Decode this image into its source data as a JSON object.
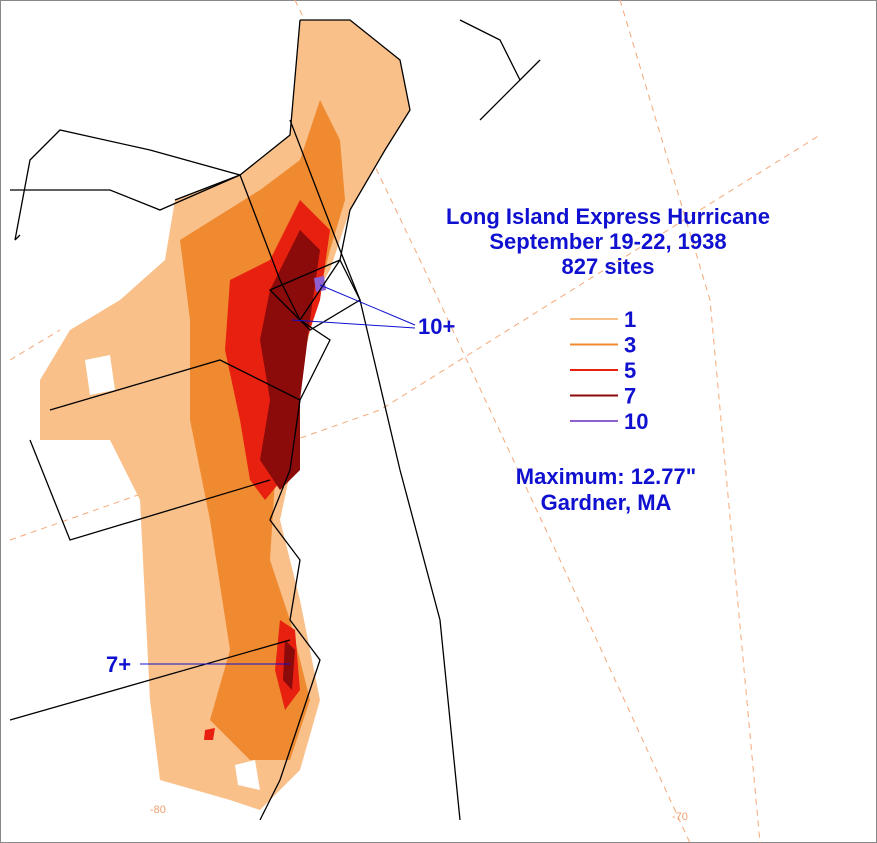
{
  "title": [
    "Long Island Express Hurricane",
    "September 19-22, 1938",
    "827 sites"
  ],
  "legend": [
    {
      "value": 1,
      "color": "#f9c08a"
    },
    {
      "value": 3,
      "color": "#f08a30"
    },
    {
      "value": 5,
      "color": "#e82010"
    },
    {
      "value": 7,
      "color": "#8b0a0a"
    },
    {
      "value": 10,
      "color": "#9060d0"
    }
  ],
  "annotations": [
    "10+",
    "7+"
  ],
  "maximum": [
    "Maximum:  12.77\"",
    "Gardner, MA"
  ],
  "longitude_labels": [
    "-80",
    "-70"
  ]
}
